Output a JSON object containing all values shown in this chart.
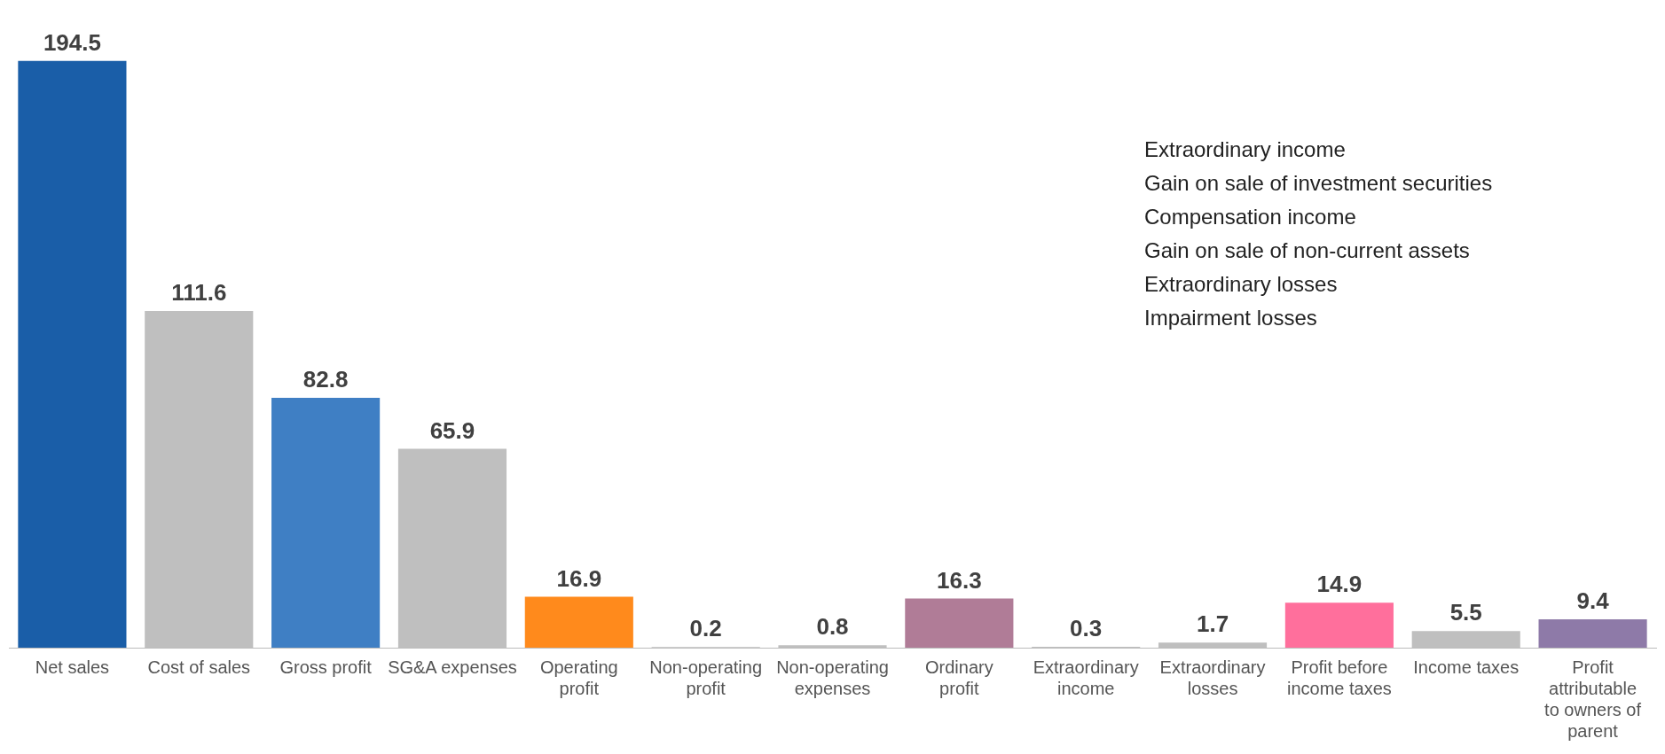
{
  "chart_data": {
    "type": "bar",
    "categories": [
      "Net sales",
      "Cost of sales",
      "Gross profit",
      "SG&A expenses",
      "Operating profit",
      "Non-operating profit",
      "Non-operating expenses",
      "Ordinary profit",
      "Extraordinary income",
      "Extraordinary losses",
      "Profit before income taxes",
      "Income taxes",
      "Profit attributable to owners of parent"
    ],
    "values": [
      194.5,
      111.6,
      82.8,
      65.9,
      16.9,
      0.2,
      0.8,
      16.3,
      0.3,
      1.7,
      14.9,
      5.5,
      9.4
    ],
    "colors": [
      "#1a5ea8",
      "#bfbfbf",
      "#3f7fc4",
      "#bfbfbf",
      "#ff8a1c",
      "#bfbfbf",
      "#bfbfbf",
      "#b07c97",
      "#bfbfbf",
      "#bfbfbf",
      "#ff6f9c",
      "#bfbfbf",
      "#8e7aa8"
    ],
    "data_labels": true,
    "annotations": [
      "Extraordinary income",
      "Gain on sale of investment securities",
      "Compensation income",
      "Gain on sale of non-current assets",
      "Extraordinary losses",
      "Impairment losses"
    ]
  }
}
